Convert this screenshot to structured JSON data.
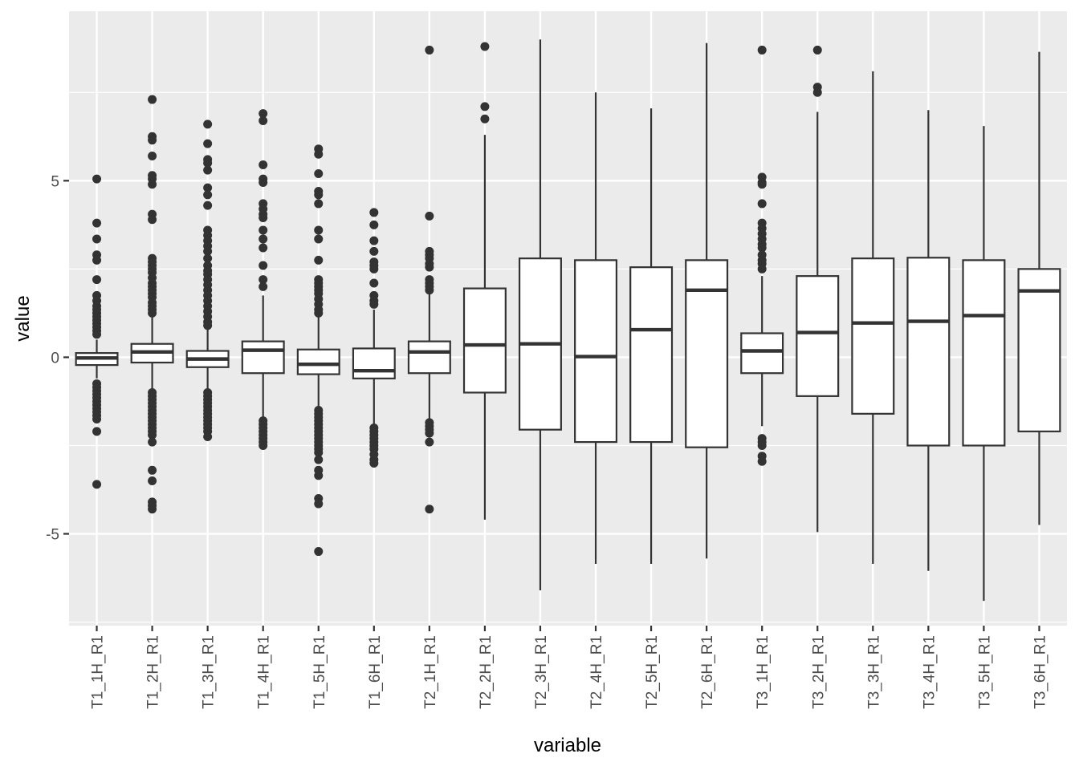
{
  "chart_data": {
    "type": "boxplot",
    "xlabel": "variable",
    "ylabel": "value",
    "ylim": [
      -7.6,
      9.8
    ],
    "yticks": [
      -5,
      0,
      5
    ],
    "ytick_labels": [
      "-5",
      "0",
      "5"
    ],
    "grid": true,
    "categories": [
      "T1_1H_R1",
      "T1_2H_R1",
      "T1_3H_R1",
      "T1_4H_R1",
      "T1_5H_R1",
      "T1_6H_R1",
      "T2_1H_R1",
      "T2_2H_R1",
      "T2_3H_R1",
      "T2_4H_R1",
      "T2_5H_R1",
      "T2_6H_R1",
      "T3_1H_R1",
      "T3_2H_R1",
      "T3_3H_R1",
      "T3_4H_R1",
      "T3_5H_R1",
      "T3_6H_R1"
    ],
    "boxes": [
      {
        "q1": -0.22,
        "median": -0.02,
        "q3": 0.12,
        "whisker_low": -0.6,
        "whisker_high": 0.5,
        "outliers": [
          5.05,
          3.8,
          3.35,
          2.9,
          2.75,
          2.2,
          1.75,
          1.6,
          1.45,
          1.35,
          1.25,
          1.15,
          1.05,
          0.95,
          0.85,
          0.75,
          0.65,
          -0.75,
          -0.85,
          -0.95,
          -1.05,
          -1.15,
          -1.25,
          -1.35,
          -1.45,
          -1.55,
          -1.65,
          -1.75,
          -2.1,
          -3.6
        ]
      },
      {
        "q1": -0.15,
        "median": 0.15,
        "q3": 0.38,
        "whisker_low": -0.9,
        "whisker_high": 1.15,
        "outliers": [
          7.3,
          6.25,
          6.15,
          5.7,
          5.15,
          5.05,
          4.9,
          4.05,
          3.9,
          2.8,
          2.7,
          2.6,
          2.5,
          2.4,
          2.25,
          2.1,
          2.0,
          1.9,
          1.8,
          1.7,
          1.55,
          1.45,
          1.35,
          1.25,
          -1.0,
          -1.1,
          -1.2,
          -1.3,
          -1.4,
          -1.5,
          -1.6,
          -1.7,
          -1.8,
          -1.9,
          -2.0,
          -2.1,
          -2.2,
          -2.4,
          -3.2,
          -3.5,
          -4.1,
          -4.2,
          -4.3
        ]
      },
      {
        "q1": -0.28,
        "median": -0.05,
        "q3": 0.18,
        "whisker_low": -0.95,
        "whisker_high": 0.85,
        "outliers": [
          6.6,
          6.05,
          5.6,
          5.5,
          5.3,
          4.8,
          4.6,
          4.3,
          3.6,
          3.45,
          3.3,
          3.15,
          3.0,
          2.8,
          2.6,
          2.45,
          2.35,
          2.2,
          2.05,
          1.9,
          1.75,
          1.6,
          1.45,
          1.3,
          1.15,
          1.0,
          0.9,
          -1.0,
          -1.1,
          -1.2,
          -1.3,
          -1.4,
          -1.5,
          -1.6,
          -1.7,
          -1.8,
          -1.9,
          -2.0,
          -2.1,
          -2.25
        ]
      },
      {
        "q1": -0.45,
        "median": 0.2,
        "q3": 0.45,
        "whisker_low": -1.7,
        "whisker_high": 1.75,
        "outliers": [
          6.9,
          6.7,
          5.45,
          5.05,
          4.95,
          4.35,
          4.2,
          4.05,
          3.95,
          3.6,
          3.35,
          3.1,
          2.6,
          2.2,
          2.0,
          -1.8,
          -1.9,
          -2.0,
          -2.1,
          -2.2,
          -2.3,
          -2.4,
          -2.5
        ]
      },
      {
        "q1": -0.48,
        "median": -0.2,
        "q3": 0.22,
        "whisker_low": -1.4,
        "whisker_high": 1.2,
        "outliers": [
          5.9,
          5.75,
          5.2,
          4.7,
          4.6,
          4.35,
          3.6,
          3.35,
          2.75,
          2.2,
          2.1,
          2.0,
          1.9,
          1.8,
          1.65,
          1.5,
          1.35,
          1.25,
          -1.5,
          -1.6,
          -1.7,
          -1.8,
          -1.9,
          -2.0,
          -2.1,
          -2.2,
          -2.3,
          -2.4,
          -2.5,
          -2.6,
          -2.7,
          -2.9,
          -3.2,
          -3.35,
          -4.0,
          -4.15,
          -5.5
        ]
      },
      {
        "q1": -0.6,
        "median": -0.38,
        "q3": 0.25,
        "whisker_low": -1.9,
        "whisker_high": 1.35,
        "outliers": [
          4.1,
          3.75,
          3.3,
          3.0,
          2.7,
          2.6,
          2.5,
          2.1,
          1.75,
          1.6,
          1.5,
          -2.0,
          -2.1,
          -2.2,
          -2.3,
          -2.4,
          -2.5,
          -2.6,
          -2.75,
          -2.9,
          -3.0
        ]
      },
      {
        "q1": -0.45,
        "median": 0.15,
        "q3": 0.45,
        "whisker_low": -1.75,
        "whisker_high": 1.8,
        "outliers": [
          8.7,
          4.0,
          3.0,
          2.9,
          2.8,
          2.65,
          2.55,
          2.2,
          2.1,
          2.0,
          1.9,
          -1.85,
          -1.95,
          -2.05,
          -2.15,
          -2.4,
          -4.3
        ]
      },
      {
        "q1": -1.0,
        "median": 0.35,
        "q3": 1.95,
        "whisker_low": -4.6,
        "whisker_high": 6.3,
        "outliers": [
          8.8,
          7.1,
          6.75
        ]
      },
      {
        "q1": -2.05,
        "median": 0.38,
        "q3": 2.8,
        "whisker_low": -6.6,
        "whisker_high": 9.0,
        "outliers": []
      },
      {
        "q1": -2.4,
        "median": 0.02,
        "q3": 2.75,
        "whisker_low": -5.85,
        "whisker_high": 7.5,
        "outliers": []
      },
      {
        "q1": -2.4,
        "median": 0.78,
        "q3": 2.55,
        "whisker_low": -5.85,
        "whisker_high": 7.05,
        "outliers": []
      },
      {
        "q1": -2.55,
        "median": 1.9,
        "q3": 2.75,
        "whisker_low": -5.7,
        "whisker_high": 8.9,
        "outliers": []
      },
      {
        "q1": -0.45,
        "median": 0.18,
        "q3": 0.68,
        "whisker_low": -1.95,
        "whisker_high": 2.3,
        "outliers": [
          8.7,
          5.1,
          4.95,
          4.9,
          4.35,
          3.8,
          3.65,
          3.5,
          3.35,
          3.2,
          3.1,
          2.9,
          2.75,
          2.65,
          2.5,
          -2.3,
          -2.4,
          -2.5,
          -2.8,
          -2.95
        ]
      },
      {
        "q1": -1.1,
        "median": 0.7,
        "q3": 2.3,
        "whisker_low": -4.95,
        "whisker_high": 6.95,
        "outliers": [
          8.7,
          7.65,
          7.5
        ]
      },
      {
        "q1": -1.6,
        "median": 0.97,
        "q3": 2.8,
        "whisker_low": -5.85,
        "whisker_high": 8.1,
        "outliers": []
      },
      {
        "q1": -2.5,
        "median": 1.02,
        "q3": 2.82,
        "whisker_low": -6.05,
        "whisker_high": 7.0,
        "outliers": []
      },
      {
        "q1": -2.5,
        "median": 1.18,
        "q3": 2.75,
        "whisker_low": -6.9,
        "whisker_high": 6.55,
        "outliers": []
      },
      {
        "q1": -2.1,
        "median": 1.88,
        "q3": 2.5,
        "whisker_low": -4.75,
        "whisker_high": 8.65,
        "outliers": []
      }
    ]
  }
}
